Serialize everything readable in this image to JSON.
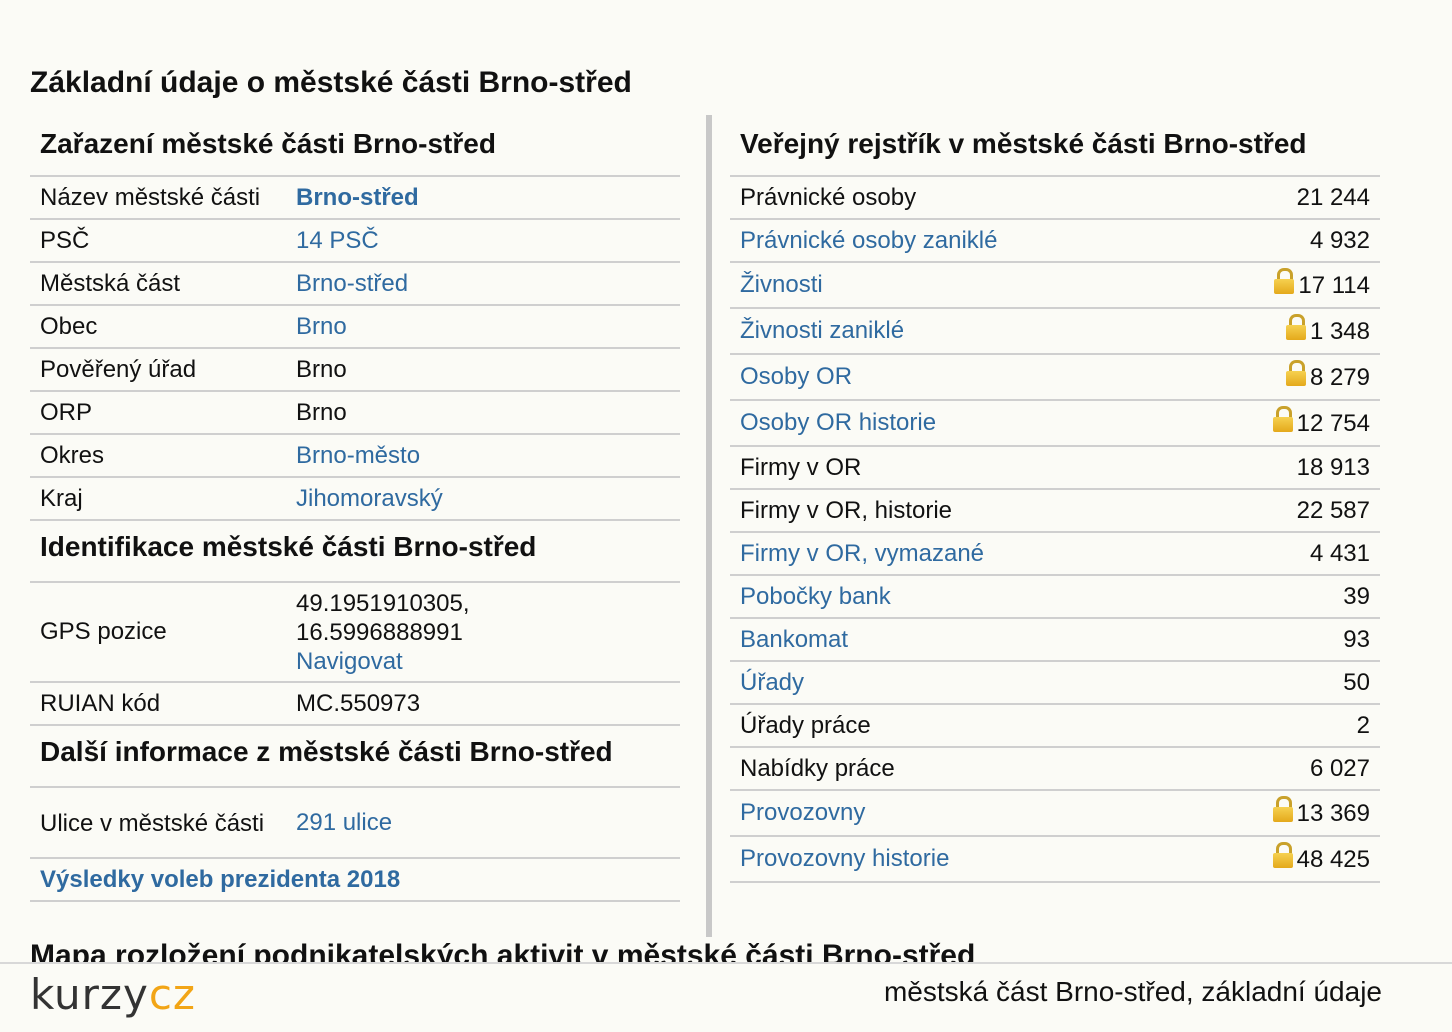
{
  "page_title": "Základní údaje o městské části Brno-střed",
  "classification": {
    "title": "Zařazení městské části Brno-střed",
    "rows": [
      {
        "label": "Název městské části",
        "value": "Brno-střed"
      },
      {
        "label": "PSČ",
        "value": "14 PSČ"
      },
      {
        "label": "Městská část",
        "value": "Brno-střed"
      },
      {
        "label": "Obec",
        "value": "Brno"
      },
      {
        "label": "Pověřený úřad",
        "value": "Brno"
      },
      {
        "label": "ORP",
        "value": "Brno"
      },
      {
        "label": "Okres",
        "value": "Brno-město"
      },
      {
        "label": "Kraj",
        "value": "Jihomoravský"
      }
    ]
  },
  "identification": {
    "title": "Identifikace městské části Brno-střed",
    "gps_label": "GPS pozice",
    "gps_lat": "49.1951910305,",
    "gps_lon": "16.5996888991",
    "navigate_label": "Navigovat",
    "ruian_label": "RUIAN kód",
    "ruian_value": "MC.550973"
  },
  "more_info": {
    "title": "Další informace z městské části Brno-střed",
    "streets_label": "Ulice v městské části",
    "streets_value": "291 ulice",
    "elections_link": "Výsledky voleb prezidenta 2018"
  },
  "registry": {
    "title": "Veřejný rejstřík v městské části Brno-střed",
    "rows": [
      {
        "label": "Právnické osoby",
        "value": "21 244"
      },
      {
        "label": "Právnické osoby zaniklé",
        "value": "4 932"
      },
      {
        "label": "Živnosti",
        "value": "17 114"
      },
      {
        "label": "Živnosti zaniklé",
        "value": "1 348"
      },
      {
        "label": "Osoby OR",
        "value": "8 279"
      },
      {
        "label": "Osoby OR historie",
        "value": "12 754"
      },
      {
        "label": "Firmy v OR",
        "value": "18 913"
      },
      {
        "label": "Firmy v OR, historie",
        "value": "22 587"
      },
      {
        "label": "Firmy v OR, vymazané",
        "value": "4 431"
      },
      {
        "label": "Pobočky bank",
        "value": "39"
      },
      {
        "label": "Bankomat",
        "value": "93"
      },
      {
        "label": "Úřady",
        "value": "50"
      },
      {
        "label": "Úřady práce",
        "value": "2"
      },
      {
        "label": "Nabídky práce",
        "value": "6 027"
      },
      {
        "label": "Provozovny",
        "value": "13 369"
      },
      {
        "label": "Provozovny historie",
        "value": "48 425"
      }
    ]
  },
  "next_heading": "Mapa rozložení podnikatelských aktivit v městské části Brno-střed",
  "footer": {
    "logo_part1": "kurzy",
    "logo_part2": "cz",
    "caption": "městská část Brno-střed, základní údaje"
  }
}
